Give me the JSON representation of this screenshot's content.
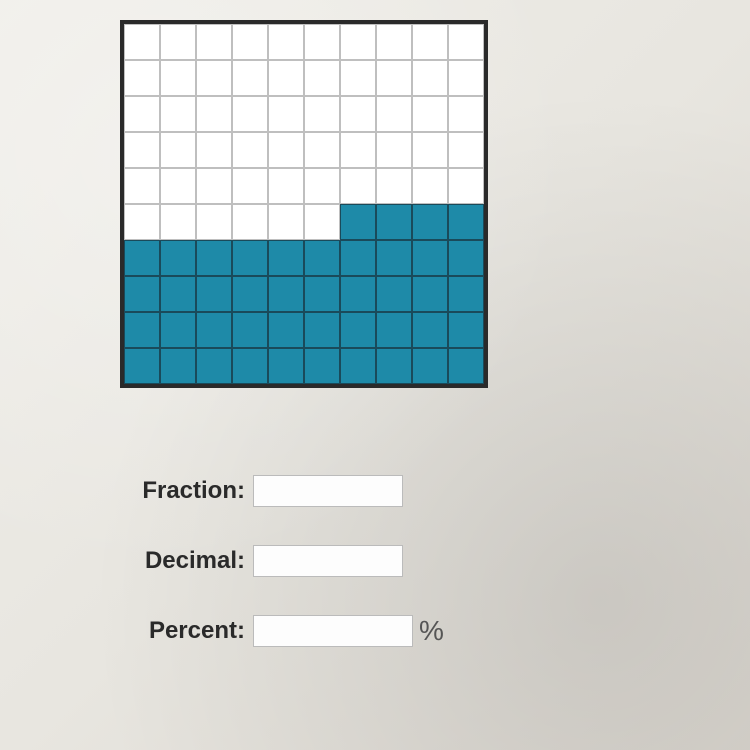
{
  "grid": {
    "rows": 10,
    "cols": 10,
    "cell_border_empty": "#bfbfbf",
    "cell_border_filled": "#1a4a5a",
    "empty_color": "#ffffff",
    "filled_color": "#1e8aa8",
    "filled_cells_count": 44,
    "filled_cells": [
      [
        0,
        0,
        0,
        0,
        0,
        0,
        0,
        0,
        0,
        0
      ],
      [
        0,
        0,
        0,
        0,
        0,
        0,
        0,
        0,
        0,
        0
      ],
      [
        0,
        0,
        0,
        0,
        0,
        0,
        0,
        0,
        0,
        0
      ],
      [
        0,
        0,
        0,
        0,
        0,
        0,
        0,
        0,
        0,
        0
      ],
      [
        0,
        0,
        0,
        0,
        0,
        0,
        0,
        0,
        0,
        0
      ],
      [
        0,
        0,
        0,
        0,
        0,
        0,
        1,
        1,
        1,
        1
      ],
      [
        1,
        1,
        1,
        1,
        1,
        1,
        1,
        1,
        1,
        1
      ],
      [
        1,
        1,
        1,
        1,
        1,
        1,
        1,
        1,
        1,
        1
      ],
      [
        1,
        1,
        1,
        1,
        1,
        1,
        1,
        1,
        1,
        1
      ],
      [
        1,
        1,
        1,
        1,
        1,
        1,
        1,
        1,
        1,
        1
      ]
    ]
  },
  "form": {
    "fraction": {
      "label": "Fraction:",
      "value": "",
      "input_width": 150
    },
    "decimal": {
      "label": "Decimal:",
      "value": "",
      "input_width": 150
    },
    "percent": {
      "label": "Percent:",
      "value": "",
      "input_width": 160,
      "suffix": "%"
    }
  },
  "colors": {
    "page_bg": "#ece9e3",
    "grid_border": "#2a2a2a",
    "text_color": "#2a2a2a",
    "input_border": "#bbbbbb"
  }
}
